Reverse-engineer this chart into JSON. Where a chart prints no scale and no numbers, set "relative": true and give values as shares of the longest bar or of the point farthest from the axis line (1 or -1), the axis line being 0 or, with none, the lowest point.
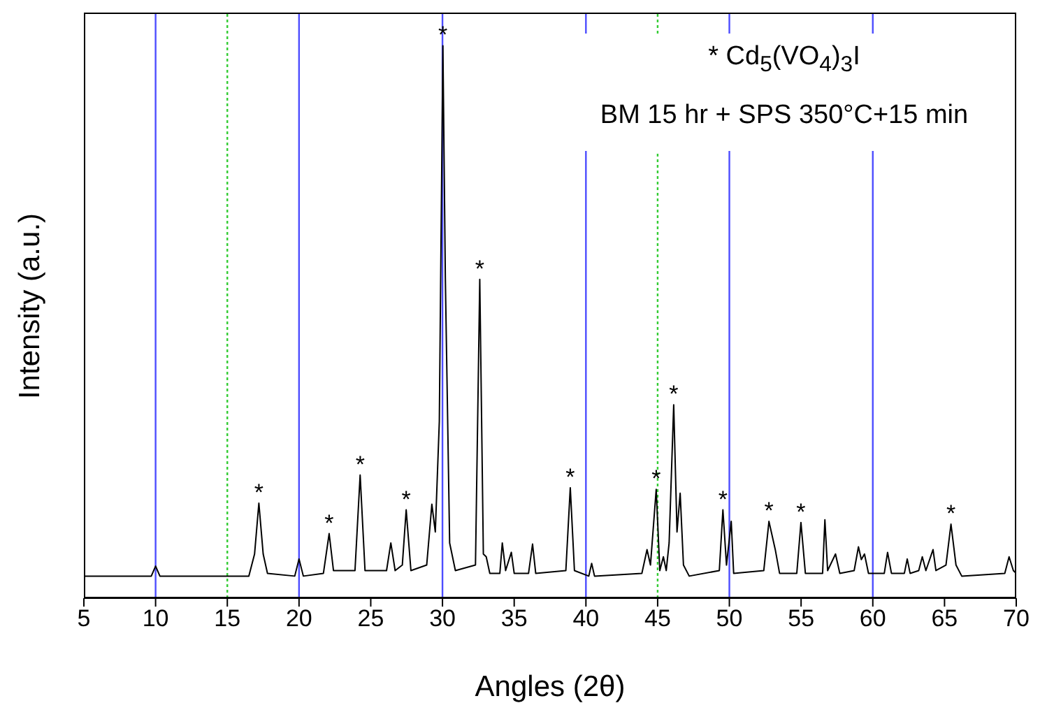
{
  "chart_data": {
    "type": "line",
    "relative": true,
    "xlabel": "Angles (2θ)",
    "ylabel": "Intensity (a.u.)",
    "xlim": [
      5,
      70
    ],
    "xticks": [
      5,
      10,
      15,
      20,
      25,
      30,
      35,
      40,
      45,
      50,
      55,
      60,
      65,
      70
    ],
    "grid": false,
    "legend": false,
    "marker": "none",
    "line_style": "solid",
    "series": [
      {
        "color": "#000000",
        "x": [
          5,
          9.7,
          10.0,
          10.3,
          16.5,
          16.9,
          17.2,
          17.5,
          17.8,
          19.7,
          20.0,
          20.3,
          21.7,
          22.1,
          22.4,
          23.9,
          24.26,
          24.6,
          26.1,
          26.4,
          26.7,
          27.2,
          27.47,
          27.8,
          28.9,
          29.26,
          29.5,
          29.78,
          30.03,
          30.2,
          30.5,
          30.9,
          32.3,
          32.6,
          32.85,
          33.05,
          33.3,
          34.0,
          34.17,
          34.4,
          34.8,
          35.0,
          36.0,
          36.28,
          36.5,
          38.6,
          38.91,
          39.2,
          40.2,
          40.4,
          40.6,
          43.9,
          44.26,
          44.5,
          44.9,
          45.15,
          45.4,
          45.6,
          45.8,
          46.12,
          46.35,
          46.57,
          46.8,
          47.2,
          49.3,
          49.55,
          49.8,
          50.13,
          50.3,
          52.4,
          52.76,
          53.2,
          53.5,
          54.7,
          54.99,
          55.3,
          56.5,
          56.66,
          56.85,
          57.4,
          57.7,
          58.7,
          59.0,
          59.2,
          59.42,
          59.7,
          60.8,
          61.03,
          61.3,
          62.2,
          62.4,
          62.6,
          63.2,
          63.45,
          63.7,
          64.2,
          64.4,
          65.1,
          65.45,
          65.8,
          66.2,
          69.2,
          69.5,
          69.8,
          70
        ],
        "values": [
          0.04,
          0.04,
          0.058,
          0.04,
          0.04,
          0.08,
          0.172,
          0.08,
          0.045,
          0.04,
          0.071,
          0.04,
          0.045,
          0.117,
          0.05,
          0.05,
          0.223,
          0.05,
          0.05,
          0.1,
          0.05,
          0.06,
          0.16,
          0.05,
          0.06,
          0.17,
          0.12,
          0.32,
          1.0,
          0.58,
          0.1,
          0.05,
          0.06,
          0.577,
          0.08,
          0.075,
          0.045,
          0.045,
          0.1,
          0.05,
          0.083,
          0.045,
          0.045,
          0.098,
          0.045,
          0.05,
          0.2,
          0.05,
          0.04,
          0.063,
          0.04,
          0.045,
          0.088,
          0.06,
          0.197,
          0.05,
          0.075,
          0.05,
          0.1,
          0.35,
          0.12,
          0.19,
          0.06,
          0.04,
          0.05,
          0.16,
          0.06,
          0.139,
          0.045,
          0.05,
          0.139,
          0.088,
          0.045,
          0.045,
          0.137,
          0.045,
          0.045,
          0.142,
          0.05,
          0.08,
          0.045,
          0.05,
          0.093,
          0.07,
          0.08,
          0.045,
          0.045,
          0.083,
          0.045,
          0.045,
          0.071,
          0.045,
          0.05,
          0.075,
          0.05,
          0.088,
          0.05,
          0.06,
          0.134,
          0.06,
          0.04,
          0.045,
          0.075,
          0.05,
          0.045
        ]
      }
    ],
    "ref_lines": [
      {
        "axis": "x",
        "value": 10,
        "color": "#4d4dff",
        "line_style": "solid"
      },
      {
        "axis": "x",
        "value": 15,
        "color": "#33cc33",
        "line_style": "dotted"
      },
      {
        "axis": "x",
        "value": 20,
        "color": "#4d4dff",
        "line_style": "solid"
      },
      {
        "axis": "x",
        "value": 30,
        "color": "#4d4dff",
        "line_style": "solid"
      },
      {
        "axis": "x",
        "value": 40,
        "color": "#4d4dff",
        "line_style": "solid"
      },
      {
        "axis": "x",
        "value": 45,
        "color": "#33cc33",
        "line_style": "dotted"
      },
      {
        "axis": "x",
        "value": 50,
        "color": "#4d4dff",
        "line_style": "solid"
      },
      {
        "axis": "x",
        "value": 60,
        "color": "#4d4dff",
        "line_style": "solid"
      }
    ],
    "annotations": [
      "* Cd$_{5}$(VO$_{4}$)$_{3}$I",
      "BM 15 hr + SPS 350°C+15 min",
      {
        "text": "*",
        "x": 17.2,
        "y": 0.172
      },
      {
        "text": "*",
        "x": 22.1,
        "y": 0.117
      },
      {
        "text": "*",
        "x": 24.26,
        "y": 0.223
      },
      {
        "text": "*",
        "x": 27.47,
        "y": 0.16
      },
      {
        "text": "*",
        "x": 30.03,
        "y": 1.0
      },
      {
        "text": "*",
        "x": 32.6,
        "y": 0.577
      },
      {
        "text": "*",
        "x": 38.91,
        "y": 0.2
      },
      {
        "text": "*",
        "x": 44.9,
        "y": 0.197
      },
      {
        "text": "*",
        "x": 46.12,
        "y": 0.35
      },
      {
        "text": "*",
        "x": 49.55,
        "y": 0.16
      },
      {
        "text": "*",
        "x": 52.76,
        "y": 0.139
      },
      {
        "text": "*",
        "x": 54.99,
        "y": 0.137
      },
      {
        "text": "*",
        "x": 65.45,
        "y": 0.134
      }
    ]
  }
}
